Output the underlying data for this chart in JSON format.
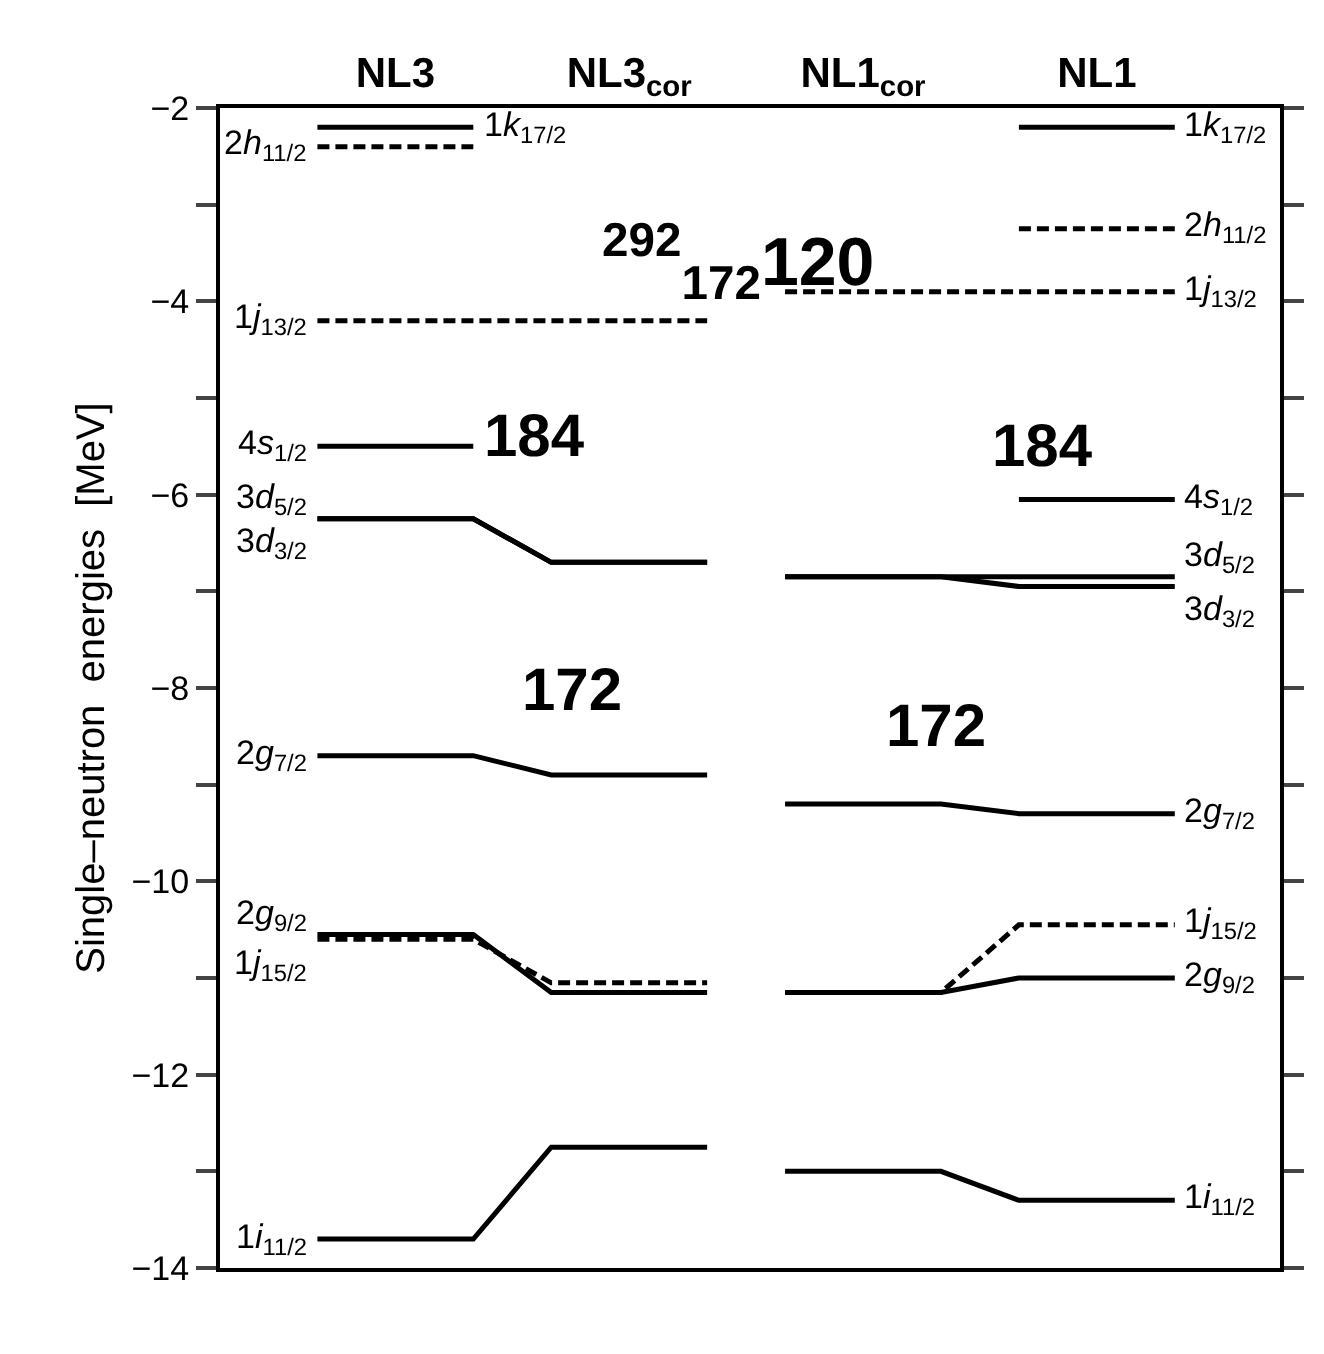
{
  "chart_data": {
    "type": "line",
    "ylabel": "Single–neutron  energies  [MeV]",
    "categories": [
      null,
      "NL3",
      null,
      null,
      "NL3$_{cor}$",
      null,
      null,
      "NL1$_{cor}$",
      null,
      null,
      "NL1",
      null
    ],
    "ylim": [
      -14,
      -2
    ],
    "yticks": [
      -2,
      {
        "value": -3,
        "label": null
      },
      -4,
      {
        "value": -5,
        "label": null
      },
      -6,
      {
        "value": -7,
        "label": null
      },
      -8,
      {
        "value": -9,
        "label": null
      },
      -10,
      {
        "value": -11,
        "label": null
      },
      -12,
      {
        "value": -13,
        "label": null
      },
      -14
    ],
    "marker": "none",
    "legend": false,
    "series": [
      {
        "name": "1k$_{17/2}$",
        "color": "#000000",
        "line_style": "solid",
        "values": [
          -2.2,
          -2.2,
          -2.2,
          null,
          null,
          null,
          null,
          null,
          null,
          null,
          null,
          null
        ]
      },
      {
        "name": "2h$_{11/2}$",
        "color": "#000000",
        "line_style": "dashed",
        "values": [
          -2.4,
          -2.4,
          -2.4,
          null,
          null,
          null,
          null,
          null,
          null,
          null,
          null,
          null
        ]
      },
      {
        "name": "1j$_{13/2}$",
        "color": "#000000",
        "line_style": "dashed",
        "values": [
          -4.2,
          -4.2,
          -4.2,
          -4.2,
          -4.2,
          -4.2,
          null,
          null,
          null,
          null,
          null,
          null
        ]
      },
      {
        "name": "4s$_{1/2}$",
        "color": "#000000",
        "line_style": "solid",
        "values": [
          -5.5,
          -5.5,
          -5.5,
          null,
          null,
          null,
          null,
          null,
          null,
          null,
          null,
          null
        ]
      },
      {
        "name": "3d$_{5/2}$",
        "color": "#000000",
        "line_style": "solid",
        "values": [
          -6.25,
          -6.25,
          -6.25,
          -6.7,
          -6.7,
          -6.7,
          null,
          null,
          null,
          null,
          null,
          null
        ]
      },
      {
        "name": "3d$_{3/2}$",
        "color": "#000000",
        "line_style": "solid",
        "values": [
          -6.25,
          -6.25,
          -6.25,
          -6.7,
          -6.7,
          -6.7,
          null,
          null,
          null,
          null,
          null,
          null
        ]
      },
      {
        "name": "2g$_{7/2}$",
        "color": "#000000",
        "line_style": "solid",
        "values": [
          -8.7,
          -8.7,
          -8.7,
          -8.9,
          -8.9,
          -8.9,
          null,
          null,
          null,
          null,
          null,
          null
        ]
      },
      {
        "name": "2g$_{9/2}$",
        "color": "#000000",
        "line_style": "solid",
        "values": [
          -10.55,
          -10.55,
          -10.55,
          -11.15,
          -11.15,
          -11.15,
          null,
          null,
          null,
          null,
          null,
          null
        ]
      },
      {
        "name": "1j$_{15/2}$",
        "color": "#000000",
        "line_style": "dashed",
        "values": [
          -10.6,
          -10.6,
          -10.6,
          -11.05,
          -11.05,
          -11.05,
          null,
          null,
          null,
          null,
          null,
          null
        ]
      },
      {
        "name": "1i$_{11/2}$",
        "color": "#000000",
        "line_style": "solid",
        "values": [
          -13.7,
          -13.7,
          -13.7,
          -12.75,
          -12.75,
          -12.75,
          null,
          null,
          null,
          null,
          null,
          null
        ]
      },
      {
        "name": "1k$_{17/2}$",
        "color": "#000000",
        "line_style": "solid",
        "values": [
          null,
          null,
          null,
          null,
          null,
          null,
          null,
          null,
          null,
          -2.2,
          -2.2,
          -2.2
        ]
      },
      {
        "name": "2h$_{11/2}$",
        "color": "#000000",
        "line_style": "dashed",
        "values": [
          null,
          null,
          null,
          null,
          null,
          null,
          null,
          null,
          null,
          -3.25,
          -3.25,
          -3.25
        ]
      },
      {
        "name": "1j$_{13/2}$",
        "color": "#000000",
        "line_style": "dashed",
        "values": [
          null,
          null,
          null,
          null,
          null,
          null,
          -3.9,
          -3.9,
          -3.9,
          -3.9,
          -3.9,
          -3.9
        ]
      },
      {
        "name": "4s$_{1/2}$",
        "color": "#000000",
        "line_style": "solid",
        "values": [
          null,
          null,
          null,
          null,
          null,
          null,
          null,
          null,
          null,
          -6.05,
          -6.05,
          -6.05
        ]
      },
      {
        "name": "3d$_{5/2}$",
        "color": "#000000",
        "line_style": "solid",
        "values": [
          null,
          null,
          null,
          null,
          null,
          null,
          -6.85,
          -6.85,
          -6.85,
          -6.85,
          -6.85,
          -6.85
        ]
      },
      {
        "name": "3d$_{3/2}$",
        "color": "#000000",
        "line_style": "solid",
        "values": [
          null,
          null,
          null,
          null,
          null,
          null,
          -6.85,
          -6.85,
          -6.85,
          -6.95,
          -6.95,
          -6.95
        ]
      },
      {
        "name": "2g$_{7/2}$",
        "color": "#000000",
        "line_style": "solid",
        "values": [
          null,
          null,
          null,
          null,
          null,
          null,
          -9.2,
          -9.2,
          -9.2,
          -9.3,
          -9.3,
          -9.3
        ]
      },
      {
        "name": "1j$_{15/2}$",
        "color": "#000000",
        "line_style": "dashed",
        "values": [
          null,
          null,
          null,
          null,
          null,
          null,
          -11.15,
          -11.15,
          -11.15,
          -10.45,
          -10.45,
          -10.45
        ]
      },
      {
        "name": "2g$_{9/2}$",
        "color": "#000000",
        "line_style": "solid",
        "values": [
          null,
          null,
          null,
          null,
          null,
          null,
          -11.15,
          -11.15,
          -11.15,
          -11.0,
          -11.0,
          -11.0
        ]
      },
      {
        "name": "1i$_{11/2}$",
        "color": "#000000",
        "line_style": "solid",
        "values": [
          null,
          null,
          null,
          null,
          null,
          null,
          -13.0,
          -13.0,
          -13.0,
          -13.3,
          -13.3,
          -13.3
        ]
      }
    ],
    "annotations": [
      "184",
      "172",
      "$^{292}$$_{172}$120",
      "184",
      "172"
    ]
  }
}
